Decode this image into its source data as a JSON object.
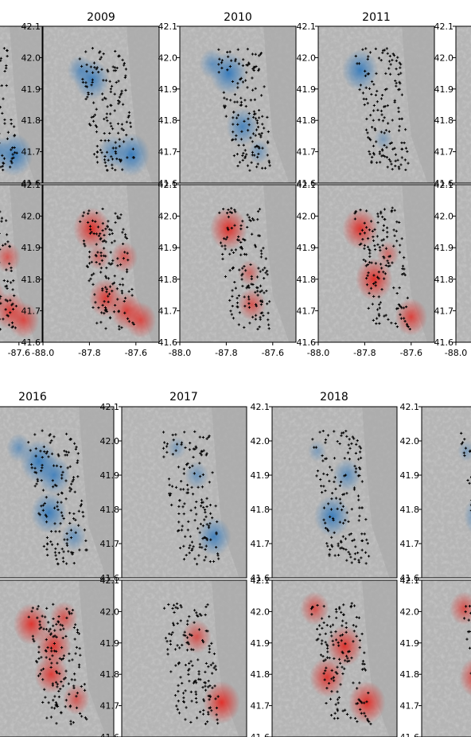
{
  "chart_data": {
    "type": "heatmap",
    "xlim": [
      -88.0,
      -87.5
    ],
    "ylim": [
      41.6,
      42.1
    ],
    "x_ticks": [
      "-88.0",
      "-87.8",
      "-87.6"
    ],
    "y_ticks": [
      "41.6",
      "41.7",
      "41.8",
      "41.9",
      "42.0",
      "42.1"
    ],
    "colors": {
      "blue": "#2f78bd",
      "red": "#e3251f",
      "map_base": "#b5b5b5",
      "points": "#000000"
    },
    "panel_groups": [
      {
        "years": [
          "2009",
          "2010",
          "2011"
        ],
        "rows": [
          {
            "color": "blue",
            "hotspots": [
              [
                {
                  "x": -87.79,
                  "y": 41.93,
                  "i": 0.85
                },
                {
                  "x": -87.84,
                  "y": 41.96,
                  "i": 0.45
                },
                {
                  "x": -87.62,
                  "y": 41.69,
                  "i": 0.95
                },
                {
                  "x": -87.7,
                  "y": 41.7,
                  "i": 0.55
                }
              ],
              [
                {
                  "x": -87.79,
                  "y": 41.95,
                  "i": 0.95
                },
                {
                  "x": -87.86,
                  "y": 41.98,
                  "i": 0.45
                },
                {
                  "x": -87.73,
                  "y": 41.78,
                  "i": 0.75
                },
                {
                  "x": -87.66,
                  "y": 41.7,
                  "i": 0.25
                }
              ],
              [
                {
                  "x": -87.82,
                  "y": 41.96,
                  "i": 0.9
                },
                {
                  "x": -87.72,
                  "y": 41.74,
                  "i": 0.12
                }
              ]
            ]
          },
          {
            "color": "red",
            "hotspots": [
              [
                {
                  "x": -87.79,
                  "y": 41.96,
                  "i": 0.95
                },
                {
                  "x": -87.65,
                  "y": 41.87,
                  "i": 0.5
                },
                {
                  "x": -87.73,
                  "y": 41.74,
                  "i": 0.8
                },
                {
                  "x": -87.64,
                  "y": 41.7,
                  "i": 0.75
                },
                {
                  "x": -87.58,
                  "y": 41.67,
                  "i": 0.7
                },
                {
                  "x": -87.76,
                  "y": 41.87,
                  "i": 0.3
                }
              ],
              [
                {
                  "x": -87.79,
                  "y": 41.96,
                  "i": 0.95
                },
                {
                  "x": -87.69,
                  "y": 41.72,
                  "i": 0.55
                },
                {
                  "x": -87.7,
                  "y": 41.82,
                  "i": 0.3
                }
              ],
              [
                {
                  "x": -87.82,
                  "y": 41.96,
                  "i": 0.9
                },
                {
                  "x": -87.76,
                  "y": 41.8,
                  "i": 0.95
                },
                {
                  "x": -87.6,
                  "y": 41.68,
                  "i": 0.75
                },
                {
                  "x": -87.7,
                  "y": 41.88,
                  "i": 0.3
                }
              ]
            ]
          }
        ]
      },
      {
        "years": [
          "2016",
          "2017",
          "2018"
        ],
        "rows": [
          {
            "color": "blue",
            "hotspots": [
              [
                {
                  "x": -87.8,
                  "y": 41.94,
                  "i": 0.95
                },
                {
                  "x": -87.74,
                  "y": 41.9,
                  "i": 0.8
                },
                {
                  "x": -87.76,
                  "y": 41.79,
                  "i": 0.9
                },
                {
                  "x": -87.66,
                  "y": 41.72,
                  "i": 0.4
                },
                {
                  "x": -87.88,
                  "y": 41.98,
                  "i": 0.4
                }
              ],
              [
                {
                  "x": -87.63,
                  "y": 41.72,
                  "i": 0.8
                },
                {
                  "x": -87.7,
                  "y": 41.9,
                  "i": 0.35
                },
                {
                  "x": -87.78,
                  "y": 41.98,
                  "i": 0.15
                }
              ],
              [
                {
                  "x": -87.76,
                  "y": 41.78,
                  "i": 0.9
                },
                {
                  "x": -87.7,
                  "y": 41.9,
                  "i": 0.55
                },
                {
                  "x": -87.82,
                  "y": 41.97,
                  "i": 0.12
                }
              ]
            ]
          },
          {
            "color": "red",
            "hotspots": [
              [
                {
                  "x": -87.83,
                  "y": 41.96,
                  "i": 0.9
                },
                {
                  "x": -87.74,
                  "y": 41.89,
                  "i": 0.85
                },
                {
                  "x": -87.75,
                  "y": 41.8,
                  "i": 0.8
                },
                {
                  "x": -87.7,
                  "y": 41.98,
                  "i": 0.55
                },
                {
                  "x": -87.65,
                  "y": 41.72,
                  "i": 0.5
                }
              ],
              [
                {
                  "x": -87.7,
                  "y": 41.92,
                  "i": 0.6
                },
                {
                  "x": -87.6,
                  "y": 41.71,
                  "i": 0.95
                }
              ],
              [
                {
                  "x": -87.83,
                  "y": 42.01,
                  "i": 0.6
                },
                {
                  "x": -87.71,
                  "y": 41.89,
                  "i": 0.9
                },
                {
                  "x": -87.78,
                  "y": 41.79,
                  "i": 0.85
                },
                {
                  "x": -87.62,
                  "y": 41.71,
                  "i": 0.95
                }
              ]
            ]
          }
        ]
      }
    ]
  }
}
